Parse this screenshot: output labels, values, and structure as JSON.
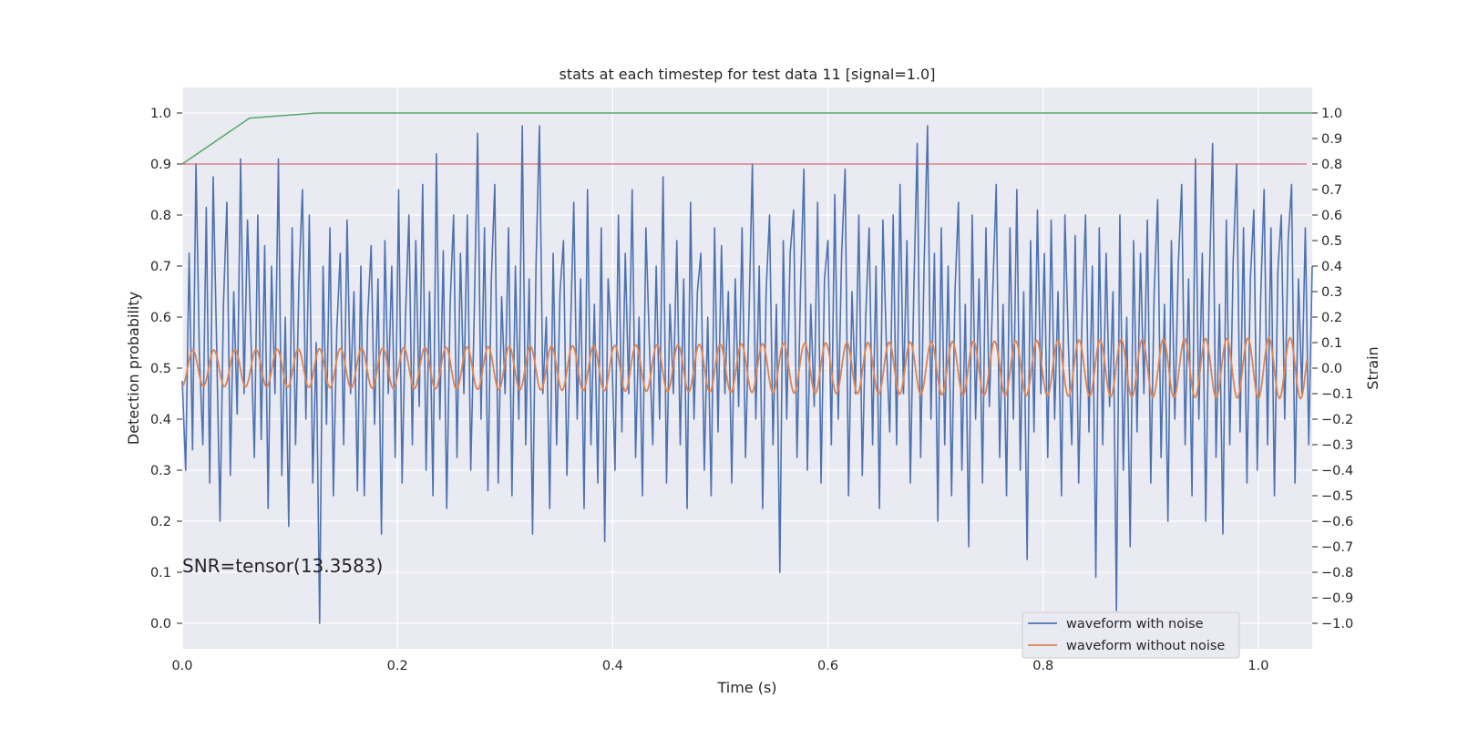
{
  "chart_data": {
    "type": "line",
    "title": "stats at each timestep for test data 11 [signal=1.0]",
    "xlabel": "Time (s)",
    "ylabel": "Detection probability",
    "y2label": "Strain",
    "xlim": [
      0.0,
      1.05
    ],
    "ylim": [
      -0.05,
      1.05
    ],
    "y2lim": [
      -1.1,
      1.1
    ],
    "x_ticks": [
      0.0,
      0.2,
      0.4,
      0.6,
      0.8,
      1.0
    ],
    "x_tick_labels": [
      "0.0",
      "0.2",
      "0.4",
      "0.6",
      "0.8",
      "1.0"
    ],
    "y_ticks": [
      0.0,
      0.1,
      0.2,
      0.3,
      0.4,
      0.5,
      0.6,
      0.7,
      0.8,
      0.9,
      1.0
    ],
    "y_tick_labels": [
      "0.0",
      "0.1",
      "0.2",
      "0.3",
      "0.4",
      "0.5",
      "0.6",
      "0.7",
      "0.8",
      "0.9",
      "1.0"
    ],
    "y2_ticks": [
      1.0,
      0.9,
      0.8,
      0.7,
      0.6,
      0.5,
      0.4,
      0.3,
      0.2,
      0.1,
      0.0,
      -0.1,
      -0.2,
      -0.3,
      -0.4,
      -0.5,
      -0.6,
      -0.7,
      -0.8,
      -0.9,
      -1.0
    ],
    "y2_tick_labels": [
      "1.0",
      "0.9",
      "0.8",
      "0.7",
      "0.6",
      "0.5",
      "0.4",
      "0.3",
      "0.2",
      "0.1",
      "0.0",
      "−0.1",
      "−0.2",
      "−0.3",
      "−0.4",
      "−0.5",
      "−0.6",
      "−0.7",
      "−0.8",
      "−0.9",
      "−1.0"
    ],
    "grid": true,
    "legend_position": "lower-right",
    "annotation": "SNR=tensor(13.3583)",
    "series": [
      {
        "name": "waveform with noise",
        "axis": "right",
        "color": "#4c72b0",
        "x_start": 0.0,
        "x_end": 1.05,
        "values": [
          -0.05,
          -0.4,
          0.45,
          -0.32,
          0.8,
          0.05,
          -0.3,
          0.63,
          -0.45,
          0.75,
          0.1,
          -0.6,
          0.25,
          0.65,
          -0.42,
          0.3,
          -0.18,
          0.82,
          -0.1,
          0.58,
          0.12,
          -0.35,
          0.6,
          -0.28,
          0.48,
          -0.55,
          0.4,
          -0.1,
          0.82,
          -0.42,
          0.2,
          -0.62,
          0.55,
          -0.3,
          0.35,
          0.7,
          -0.2,
          0.6,
          -0.45,
          0.1,
          -1.0,
          0.4,
          -0.22,
          0.55,
          -0.5,
          0.15,
          0.45,
          -0.3,
          0.58,
          -0.1,
          0.3,
          -0.48,
          0.4,
          -0.5,
          0.2,
          0.48,
          -0.22,
          0.35,
          -0.65,
          0.5,
          -0.1,
          0.4,
          -0.35,
          0.7,
          -0.45,
          0.2,
          0.6,
          -0.3,
          0.5,
          -0.15,
          0.72,
          -0.4,
          0.3,
          -0.5,
          0.84,
          -0.2,
          0.46,
          -0.55,
          0.25,
          0.6,
          -0.35,
          0.45,
          -0.1,
          0.6,
          -0.4,
          0.2,
          0.92,
          -0.2,
          0.55,
          -0.48,
          0.35,
          0.72,
          -0.45,
          0.28,
          -0.1,
          0.55,
          -0.5,
          0.4,
          -0.2,
          0.95,
          -0.3,
          0.35,
          -0.65,
          0.4,
          0.95,
          -0.1,
          0.2,
          -0.55,
          0.45,
          -0.3,
          0.3,
          0.5,
          -0.42,
          0.12,
          0.65,
          -0.2,
          0.35,
          -0.55,
          0.7,
          -0.3,
          0.25,
          -0.45,
          0.55,
          -0.68,
          0.35,
          0.1,
          -0.4,
          0.6,
          -0.25,
          0.45,
          -0.1,
          0.7,
          -0.35,
          0.2,
          -0.5,
          0.55,
          0.1,
          -0.3,
          0.4,
          -0.2,
          0.75,
          -0.45,
          0.25,
          -0.1,
          0.5,
          -0.3,
          0.35,
          -0.55,
          0.65,
          -0.2,
          0.3,
          0.45,
          -0.4,
          0.2,
          -0.5,
          0.55,
          -0.25,
          0.48,
          -0.1,
          0.3,
          -0.45,
          0.35,
          -0.15,
          0.55,
          -0.35,
          0.2,
          0.8,
          -0.2,
          0.4,
          -0.55,
          0.3,
          0.6,
          -0.3,
          0.25,
          -0.8,
          0.5,
          -0.2,
          0.45,
          0.62,
          -0.35,
          0.3,
          0.78,
          -0.4,
          0.25,
          -0.15,
          0.65,
          -0.45,
          0.35,
          0.5,
          -0.3,
          0.68,
          -0.2,
          0.45,
          0.78,
          -0.5,
          0.3,
          -0.1,
          0.6,
          -0.42,
          0.2,
          0.55,
          -0.3,
          0.4,
          -0.55,
          0.58,
          0.1,
          -0.25,
          0.6,
          -0.3,
          0.72,
          -0.1,
          0.5,
          -0.45,
          0.3,
          0.88,
          -0.35,
          0.4,
          0.95,
          -0.2,
          0.45,
          -0.6,
          0.55,
          -0.3,
          0.4,
          -0.5,
          0.3,
          0.65,
          -0.4,
          0.25,
          -0.7,
          0.6,
          -0.2,
          0.35,
          -0.45,
          0.55,
          -0.15,
          0.3,
          0.72,
          -0.35,
          0.25,
          -0.5,
          0.55,
          -0.2,
          0.7,
          -0.4,
          0.3,
          -0.75,
          0.5,
          -0.25,
          0.62,
          -0.1,
          0.45,
          -0.35,
          0.58,
          -0.2,
          0.3,
          -0.5,
          0.6,
          0.1,
          -0.3,
          0.52,
          -0.45,
          0.2,
          0.6,
          -0.25,
          0.4,
          -0.82,
          0.55,
          -0.3,
          0.45,
          -0.15,
          0.3,
          -0.95,
          0.6,
          -0.4,
          0.2,
          -0.7,
          0.5,
          -0.25,
          0.45,
          -0.1,
          0.58,
          -0.45,
          0.3,
          0.66,
          -0.35,
          0.25,
          -0.6,
          0.5,
          -0.2,
          0.4,
          0.72,
          -0.3,
          0.35,
          -0.5,
          0.82,
          -0.2,
          0.45,
          -0.6,
          0.3,
          0.88,
          -0.35,
          0.25,
          -0.65,
          0.58,
          -0.3,
          0.42,
          0.8,
          -0.25,
          0.55,
          -0.45,
          0.35,
          0.62,
          -0.4,
          0.28,
          0.7,
          -0.3,
          0.55,
          -0.5,
          0.38,
          0.6,
          -0.2,
          0.5,
          0.72,
          -0.45,
          0.35,
          -0.1,
          0.55,
          -0.3,
          0.4
        ]
      },
      {
        "name": "waveform without noise",
        "axis": "right",
        "color": "#dd8452",
        "frequency_hz": 51,
        "amplitude_start": 0.07,
        "amplitude_end": 0.12,
        "x_start": 0.0,
        "x_end": 1.045
      },
      {
        "axis": "left",
        "color": "#55a868",
        "x": [
          0.0,
          0.0625,
          0.125,
          1.05
        ],
        "y": [
          0.9,
          0.99,
          1.0,
          1.0
        ]
      },
      {
        "axis": "left",
        "color": "#c44e52",
        "x": [
          0.0,
          1.045
        ],
        "y": [
          0.9,
          0.9
        ]
      }
    ]
  }
}
